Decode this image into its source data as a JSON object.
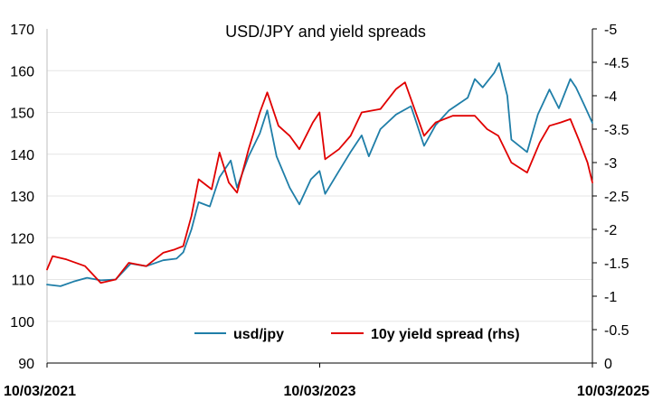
{
  "chart_data": {
    "type": "line",
    "title": "USD/JPY and yield spreads",
    "xlabel": "",
    "ylabel": "",
    "grid": true,
    "legend_position": "bottom-center",
    "x_ticks": [
      "10/03/2021",
      "10/03/2023",
      "10/03/2025"
    ],
    "y_left": {
      "lim": [
        90,
        170
      ],
      "ticks": [
        "170",
        "160",
        "150",
        "140",
        "130",
        "120",
        "110",
        "100",
        "90"
      ]
    },
    "y_right": {
      "lim": [
        0,
        -5
      ],
      "inverted": true,
      "ticks": [
        "-5",
        "-4.5",
        "-4",
        "-3.5",
        "-3",
        "-2.5",
        "-2",
        "-1.5",
        "-1",
        "-0.5",
        "0"
      ]
    },
    "x_range": [
      "2021-03-10",
      "2025-03-10"
    ],
    "series": [
      {
        "name": "usd/jpy",
        "axis": "left",
        "color": "#1f7ea8",
        "points": [
          [
            "2021-03-10",
            108.8
          ],
          [
            "2021-04-15",
            108.4
          ],
          [
            "2021-05-20",
            109.5
          ],
          [
            "2021-06-25",
            110.4
          ],
          [
            "2021-08-01",
            109.8
          ],
          [
            "2021-09-10",
            110.0
          ],
          [
            "2021-10-20",
            113.8
          ],
          [
            "2021-12-01",
            113.2
          ],
          [
            "2022-01-15",
            114.6
          ],
          [
            "2022-02-20",
            115.0
          ],
          [
            "2022-03-10",
            116.5
          ],
          [
            "2022-04-01",
            122.0
          ],
          [
            "2022-04-20",
            128.5
          ],
          [
            "2022-05-20",
            127.5
          ],
          [
            "2022-06-15",
            134.5
          ],
          [
            "2022-07-15",
            138.5
          ],
          [
            "2022-08-01",
            132.0
          ],
          [
            "2022-09-01",
            139.5
          ],
          [
            "2022-10-01",
            145.0
          ],
          [
            "2022-10-21",
            150.5
          ],
          [
            "2022-11-15",
            139.5
          ],
          [
            "2022-12-20",
            132.0
          ],
          [
            "2023-01-15",
            128.0
          ],
          [
            "2023-02-15",
            134.0
          ],
          [
            "2023-03-10",
            136.0
          ],
          [
            "2023-03-25",
            130.5
          ],
          [
            "2023-05-01",
            136.0
          ],
          [
            "2023-06-01",
            140.5
          ],
          [
            "2023-07-01",
            144.5
          ],
          [
            "2023-07-20",
            139.5
          ],
          [
            "2023-08-20",
            146.0
          ],
          [
            "2023-10-01",
            149.5
          ],
          [
            "2023-11-10",
            151.5
          ],
          [
            "2023-12-15",
            142.0
          ],
          [
            "2024-01-15",
            147.0
          ],
          [
            "2024-02-20",
            150.5
          ],
          [
            "2024-04-10",
            153.5
          ],
          [
            "2024-04-29",
            158.0
          ],
          [
            "2024-05-20",
            156.0
          ],
          [
            "2024-06-20",
            159.5
          ],
          [
            "2024-07-03",
            161.8
          ],
          [
            "2024-07-25",
            154.0
          ],
          [
            "2024-08-05",
            143.5
          ],
          [
            "2024-09-16",
            140.5
          ],
          [
            "2024-10-15",
            149.5
          ],
          [
            "2024-11-15",
            155.5
          ],
          [
            "2024-12-10",
            151.0
          ],
          [
            "2025-01-10",
            158.0
          ],
          [
            "2025-01-25",
            156.0
          ],
          [
            "2025-02-15",
            152.0
          ],
          [
            "2025-03-10",
            147.5
          ]
        ]
      },
      {
        "name": "10y yield spread (rhs)",
        "axis": "right",
        "color": "#e00000",
        "points": [
          [
            "2021-03-10",
            -1.4
          ],
          [
            "2021-03-25",
            -1.6
          ],
          [
            "2021-05-01",
            -1.55
          ],
          [
            "2021-06-20",
            -1.45
          ],
          [
            "2021-08-01",
            -1.2
          ],
          [
            "2021-09-10",
            -1.25
          ],
          [
            "2021-10-15",
            -1.5
          ],
          [
            "2021-12-01",
            -1.45
          ],
          [
            "2022-01-15",
            -1.65
          ],
          [
            "2022-02-15",
            -1.7
          ],
          [
            "2022-03-10",
            -1.75
          ],
          [
            "2022-04-01",
            -2.2
          ],
          [
            "2022-04-20",
            -2.75
          ],
          [
            "2022-05-25",
            -2.6
          ],
          [
            "2022-06-15",
            -3.15
          ],
          [
            "2022-07-10",
            -2.7
          ],
          [
            "2022-08-01",
            -2.55
          ],
          [
            "2022-09-01",
            -3.2
          ],
          [
            "2022-10-01",
            -3.75
          ],
          [
            "2022-10-21",
            -4.05
          ],
          [
            "2022-11-20",
            -3.55
          ],
          [
            "2022-12-20",
            -3.4
          ],
          [
            "2023-01-15",
            -3.2
          ],
          [
            "2023-02-20",
            -3.6
          ],
          [
            "2023-03-10",
            -3.75
          ],
          [
            "2023-03-25",
            -3.05
          ],
          [
            "2023-05-01",
            -3.2
          ],
          [
            "2023-06-01",
            -3.4
          ],
          [
            "2023-07-01",
            -3.75
          ],
          [
            "2023-08-20",
            -3.8
          ],
          [
            "2023-10-01",
            -4.1
          ],
          [
            "2023-10-25",
            -4.2
          ],
          [
            "2023-12-15",
            -3.4
          ],
          [
            "2024-01-15",
            -3.6
          ],
          [
            "2024-03-01",
            -3.7
          ],
          [
            "2024-04-29",
            -3.7
          ],
          [
            "2024-06-01",
            -3.5
          ],
          [
            "2024-07-01",
            -3.4
          ],
          [
            "2024-08-05",
            -3.0
          ],
          [
            "2024-09-16",
            -2.85
          ],
          [
            "2024-10-20",
            -3.3
          ],
          [
            "2024-11-15",
            -3.55
          ],
          [
            "2024-12-15",
            -3.6
          ],
          [
            "2025-01-10",
            -3.65
          ],
          [
            "2025-02-01",
            -3.35
          ],
          [
            "2025-02-25",
            -3.0
          ],
          [
            "2025-03-10",
            -2.7
          ]
        ]
      }
    ]
  }
}
